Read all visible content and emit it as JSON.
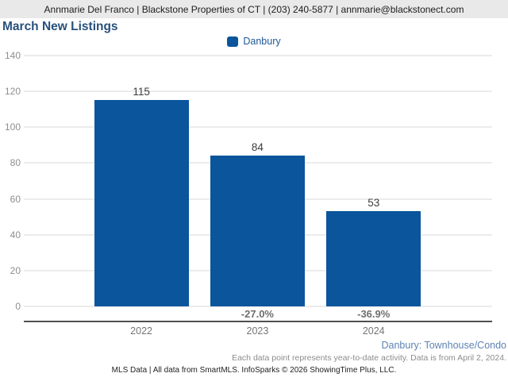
{
  "header": {
    "contact_line": "Annmarie Del Franco | Blackstone Properties of CT | (203) 240-5877 | annmarie@blackstonect.com"
  },
  "title": "March New Listings",
  "legend": {
    "label": "Danbury",
    "color": "#0a559c"
  },
  "chart_data": {
    "type": "bar",
    "title": "March New Listings",
    "categories": [
      "2022",
      "2023",
      "2024"
    ],
    "series": [
      {
        "name": "Danbury",
        "values": [
          115,
          84,
          53
        ],
        "color": "#0a559c"
      }
    ],
    "value_labels": [
      "115",
      "84",
      "53"
    ],
    "pct_change_labels": [
      "",
      "-27.0%",
      "-36.9%"
    ],
    "ylim": [
      0,
      140
    ],
    "yticks": [
      0,
      20,
      40,
      60,
      80,
      100,
      120,
      140
    ],
    "grid": true,
    "legend_position": "top-center",
    "layout": {
      "bar_centers_pct": [
        25.1,
        49.9,
        74.7
      ],
      "bar_width_pct": 20.2
    }
  },
  "footer": {
    "segment_label": "Danbury: Townhouse/Condo",
    "note": "Each data point represents year-to-date activity. Data is from April 2, 2024.",
    "credit": "MLS Data | All data from SmartMLS. InfoSparks © 2026 ShowingTime Plus, LLC."
  },
  "colors": {
    "bar_blue": "#0a559c",
    "title_navy": "#27517c",
    "legend_text_blue": "#1d5796",
    "segment_text_blue": "#5d83b3",
    "header_background": "#e9e9e9",
    "gridline_gray": "#d9d9d9",
    "axis_line_gray": "#4f4f4f",
    "tick_text_gray": "#8e8e8e",
    "pct_text_gray": "#6e6e6e",
    "note_text_gray": "#8c8c8c",
    "value_text": "#3d3d3d"
  }
}
